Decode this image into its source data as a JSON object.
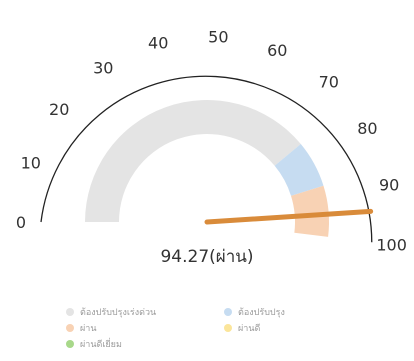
{
  "chart_data": {
    "type": "gauge",
    "range": [
      0,
      100
    ],
    "ticks": [
      0,
      10,
      20,
      30,
      40,
      50,
      60,
      70,
      80,
      90,
      100
    ],
    "bands": [
      {
        "name": "ต้องปรับปรุงเร่งด่วน",
        "from": 0,
        "to": 75,
        "color": "#e4e4e4"
      },
      {
        "name": "ต้องปรับปรุง",
        "from": 75,
        "to": 87,
        "color": "#c6dcf1"
      },
      {
        "name": "ผ่าน",
        "from": 87,
        "to": 100,
        "color": "#f8d2b4"
      }
    ],
    "value": 94.27,
    "value_label": "94.27(ผ่าน)",
    "needle_color": "#d98b3a",
    "legend": [
      {
        "label": "ต้องปรับปรุงเร่งด่วน",
        "color": "#e4e4e4"
      },
      {
        "label": "ต้องปรับปรุง",
        "color": "#c6dcf1"
      },
      {
        "label": "ผ่าน",
        "color": "#f8d2b4"
      },
      {
        "label": "ผ่านดี",
        "color": "#fbe59a"
      },
      {
        "label": "ผ่านดีเยี่ยม",
        "color": "#a8d88a"
      }
    ]
  }
}
